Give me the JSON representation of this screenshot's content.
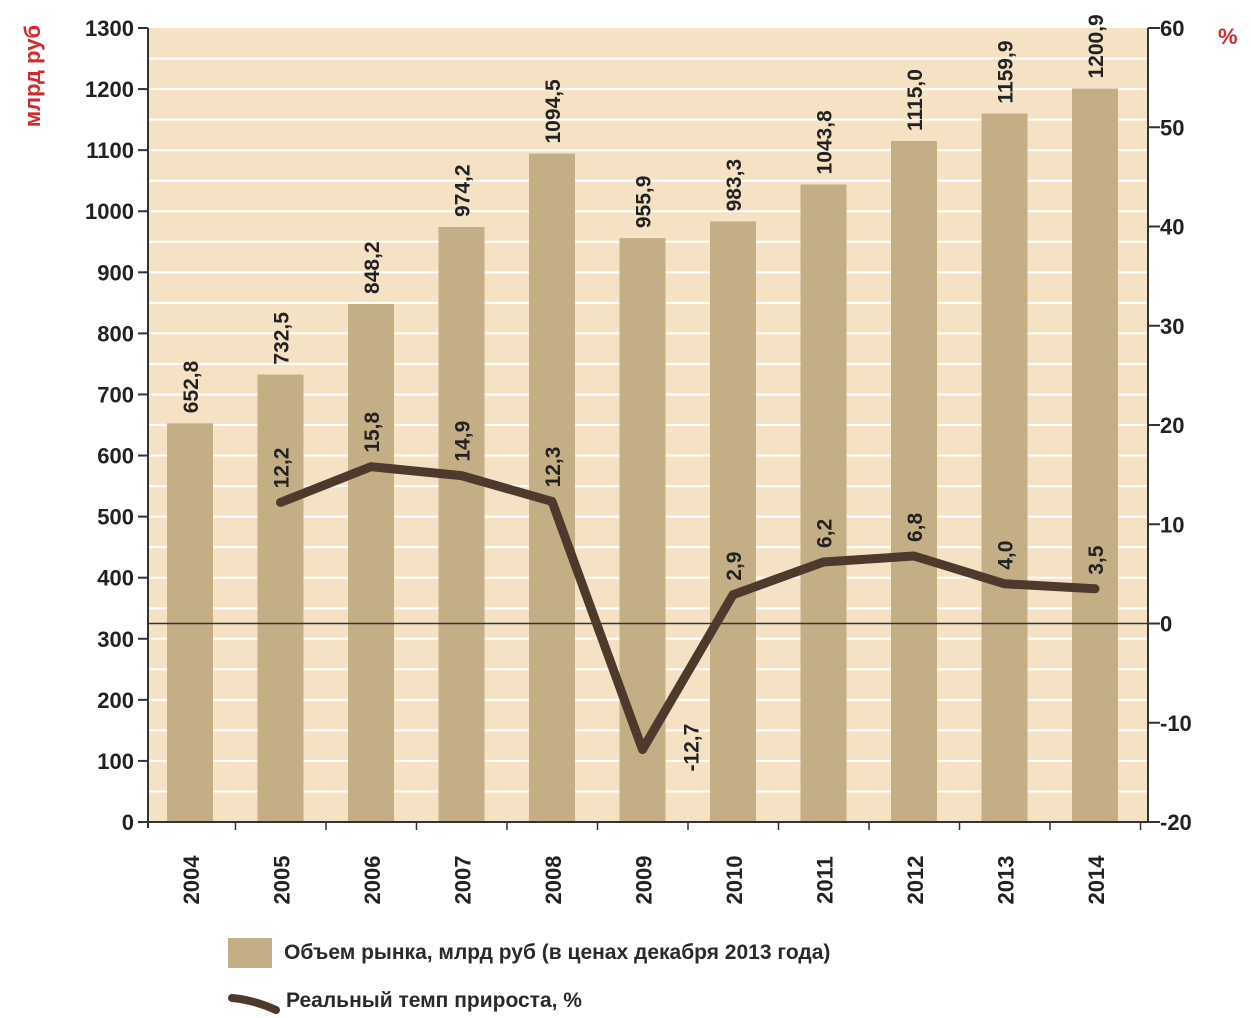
{
  "colors": {
    "plot_bg": "#f5e2c4",
    "bar": "#c4ae86",
    "line": "#4d3a2c",
    "unit_label": "#d9262a",
    "gridline": "#ffffff"
  },
  "chart_data": {
    "type": "bar",
    "categories": [
      "2004",
      "2005",
      "2006",
      "2007",
      "2008",
      "2009",
      "2010",
      "2011",
      "2012",
      "2013",
      "2014"
    ],
    "series": [
      {
        "name": "Объем рынка, млрд руб (в ценах декабря 2013 года)",
        "axis": "left",
        "values": [
          652.8,
          732.5,
          848.2,
          974.2,
          1094.5,
          955.9,
          983.3,
          1043.8,
          1115.0,
          1159.9,
          1200.9
        ],
        "labels": [
          "652,8",
          "732,5",
          "848,2",
          "974,2",
          "1094,5",
          "955,9",
          "983,3",
          "1043,8",
          "1115,0",
          "1159,9",
          "1200,9"
        ]
      },
      {
        "name": "Реальный темп прироста, %",
        "axis": "right",
        "type": "line",
        "values": [
          null,
          12.2,
          15.8,
          14.9,
          12.3,
          -12.7,
          2.9,
          6.2,
          6.8,
          4.0,
          3.5
        ],
        "labels": [
          "",
          "12,2",
          "15,8",
          "14,9",
          "12,3",
          "-12,7",
          "2,9",
          "6,2",
          "6,8",
          "4,0",
          "3,5"
        ]
      }
    ],
    "left_axis": {
      "label": "млрд руб",
      "ylim": [
        0,
        1300
      ],
      "ticks": [
        "0",
        "100",
        "200",
        "300",
        "400",
        "500",
        "600",
        "700",
        "800",
        "900",
        "1000",
        "1100",
        "1200",
        "1300"
      ]
    },
    "right_axis": {
      "label": "%",
      "ylim": [
        -20,
        60
      ],
      "ticks": [
        "-20",
        "-10",
        "0",
        "10",
        "20",
        "30",
        "40",
        "50",
        "60"
      ]
    },
    "grid": true,
    "legend_position": "bottom"
  }
}
